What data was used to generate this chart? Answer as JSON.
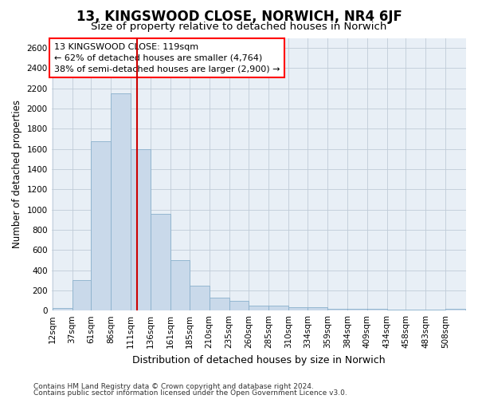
{
  "title": "13, KINGSWOOD CLOSE, NORWICH, NR4 6JF",
  "subtitle": "Size of property relative to detached houses in Norwich",
  "xlabel": "Distribution of detached houses by size in Norwich",
  "ylabel": "Number of detached properties",
  "footnote1": "Contains HM Land Registry data © Crown copyright and database right 2024.",
  "footnote2": "Contains public sector information licensed under the Open Government Licence v3.0.",
  "annotation_line1": "13 KINGSWOOD CLOSE: 119sqm",
  "annotation_line2": "← 62% of detached houses are smaller (4,764)",
  "annotation_line3": "38% of semi-detached houses are larger (2,900) →",
  "bar_color": "#c9d9ea",
  "bar_edge_color": "#8ab0cc",
  "grid_color": "#c0ccd8",
  "vline_color": "#cc0000",
  "vline_x": 119,
  "categories": [
    "12sqm",
    "37sqm",
    "61sqm",
    "86sqm",
    "111sqm",
    "136sqm",
    "161sqm",
    "185sqm",
    "210sqm",
    "235sqm",
    "260sqm",
    "285sqm",
    "310sqm",
    "334sqm",
    "359sqm",
    "384sqm",
    "409sqm",
    "434sqm",
    "458sqm",
    "483sqm",
    "508sqm"
  ],
  "bin_edges": [
    12,
    37,
    61,
    86,
    111,
    136,
    161,
    185,
    210,
    235,
    260,
    285,
    310,
    334,
    359,
    384,
    409,
    434,
    458,
    483,
    508
  ],
  "bin_widths": [
    25,
    24,
    25,
    25,
    25,
    25,
    24,
    25,
    25,
    25,
    25,
    25,
    24,
    25,
    25,
    25,
    25,
    24,
    25,
    25,
    25
  ],
  "values": [
    25,
    300,
    1680,
    2150,
    1600,
    960,
    500,
    245,
    125,
    100,
    50,
    50,
    30,
    35,
    20,
    20,
    15,
    10,
    10,
    10,
    20
  ],
  "ylim": [
    0,
    2700
  ],
  "yticks": [
    0,
    200,
    400,
    600,
    800,
    1000,
    1200,
    1400,
    1600,
    1800,
    2000,
    2200,
    2400,
    2600
  ],
  "plot_bg_color": "#e8eff6",
  "title_fontsize": 12,
  "subtitle_fontsize": 9.5,
  "xlabel_fontsize": 9,
  "ylabel_fontsize": 8.5,
  "annot_fontsize": 8,
  "tick_fontsize": 7.5,
  "footnote_fontsize": 6.5
}
